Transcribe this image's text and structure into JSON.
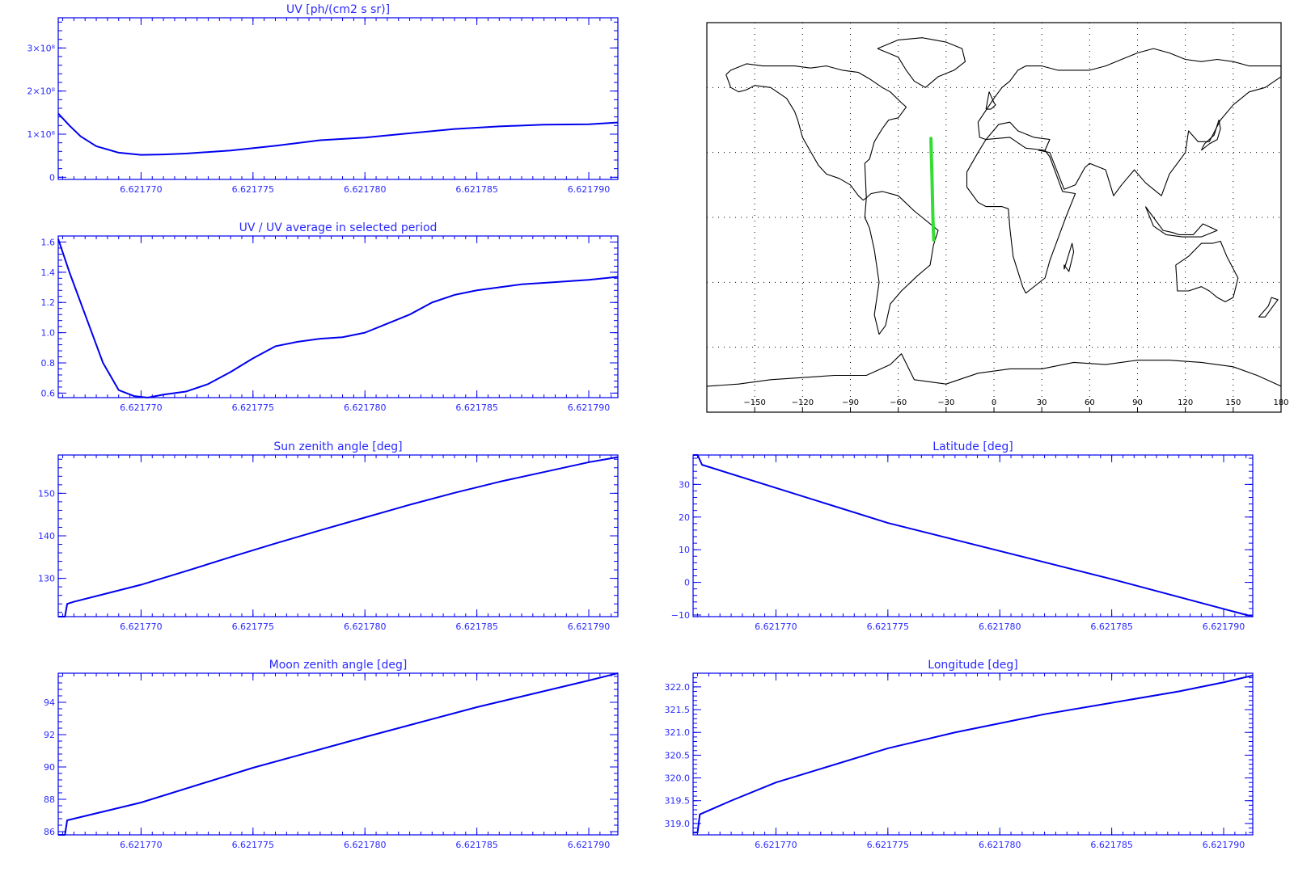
{
  "colors": {
    "plot": "#0000ee",
    "label": "#2a2aff",
    "track": "#33dd33",
    "coast": "#000000"
  },
  "chart_data": [
    {
      "id": "uv",
      "type": "line",
      "title": "UV [ph/(cm2 s sr)]",
      "xticks": [
        "6.621770",
        "6.621775",
        "6.621780",
        "6.621785",
        "6.621790"
      ],
      "xtick_values": [
        6.62177,
        6.621775,
        6.62178,
        6.621785,
        6.62179
      ],
      "xlim": [
        6.6217663,
        6.6217913
      ],
      "yticks": [
        {
          "label": "0",
          "value": 0
        },
        {
          "label": "1×10⁸",
          "value": 100000000
        },
        {
          "label": "2×10⁸",
          "value": 200000000
        },
        {
          "label": "3×10⁸",
          "value": 300000000
        }
      ],
      "ylim": [
        -5000000,
        370000000
      ],
      "series": [
        {
          "x": [
            6.6217663,
            6.6217668,
            6.6217673,
            6.621768,
            6.621769,
            6.62177,
            6.621771,
            6.621772,
            6.621774,
            6.621776,
            6.621778,
            6.62178,
            6.621782,
            6.621784,
            6.621786,
            6.621788,
            6.62179,
            6.6217913
          ],
          "y": [
            148000000,
            120000000,
            95000000,
            72000000,
            57000000,
            52000000,
            53000000,
            55000000,
            62000000,
            73000000,
            86000000,
            92000000,
            102000000,
            112000000,
            118000000,
            122000000,
            123000000,
            127000000
          ]
        }
      ]
    },
    {
      "id": "uv-ratio",
      "type": "line",
      "title": "UV / UV average in selected period",
      "xticks": [
        "6.621770",
        "6.621775",
        "6.621780",
        "6.621785",
        "6.621790"
      ],
      "xtick_values": [
        6.62177,
        6.621775,
        6.62178,
        6.621785,
        6.62179
      ],
      "xlim": [
        6.6217663,
        6.6217913
      ],
      "yticks": [
        {
          "label": "0.6",
          "value": 0.6
        },
        {
          "label": "0.8",
          "value": 0.8
        },
        {
          "label": "1.0",
          "value": 1.0
        },
        {
          "label": "1.2",
          "value": 1.2
        },
        {
          "label": "1.4",
          "value": 1.4
        },
        {
          "label": "1.6",
          "value": 1.6
        }
      ],
      "ylim": [
        0.57,
        1.64
      ],
      "series": [
        {
          "x": [
            6.6217663,
            6.6217668,
            6.6217675,
            6.6217683,
            6.621769,
            6.6217697,
            6.6217703,
            6.621771,
            6.621772,
            6.621773,
            6.621774,
            6.621775,
            6.621776,
            6.621777,
            6.621778,
            6.621779,
            6.62178,
            6.621781,
            6.621782,
            6.621783,
            6.621784,
            6.621785,
            6.621786,
            6.621787,
            6.621788,
            6.621789,
            6.62179,
            6.6217913
          ],
          "y": [
            1.62,
            1.4,
            1.12,
            0.8,
            0.62,
            0.58,
            0.57,
            0.59,
            0.61,
            0.66,
            0.74,
            0.83,
            0.91,
            0.94,
            0.96,
            0.97,
            1.0,
            1.06,
            1.12,
            1.2,
            1.25,
            1.28,
            1.3,
            1.32,
            1.33,
            1.34,
            1.35,
            1.37
          ]
        }
      ]
    },
    {
      "id": "sun-zenith",
      "type": "line",
      "title": "Sun zenith angle [deg]",
      "xticks": [
        "6.621770",
        "6.621775",
        "6.621780",
        "6.621785",
        "6.621790"
      ],
      "xtick_values": [
        6.62177,
        6.621775,
        6.62178,
        6.621785,
        6.62179
      ],
      "xlim": [
        6.6217663,
        6.6217913
      ],
      "yticks": [
        {
          "label": "130",
          "value": 130
        },
        {
          "label": "140",
          "value": 140
        },
        {
          "label": "150",
          "value": 150
        }
      ],
      "ylim": [
        121,
        159
      ],
      "series": [
        {
          "x": [
            6.6217663,
            6.6217666,
            6.6217667,
            6.621767,
            6.62177,
            6.621772,
            6.621774,
            6.621776,
            6.621778,
            6.62178,
            6.621782,
            6.621784,
            6.621786,
            6.621788,
            6.62179,
            6.6217913
          ],
          "y": [
            121,
            121,
            124,
            124.5,
            128.5,
            131.7,
            135,
            138.2,
            141.3,
            144.3,
            147.3,
            150.1,
            152.7,
            155,
            157.3,
            158.5
          ]
        }
      ]
    },
    {
      "id": "latitude",
      "type": "line",
      "title": "Latitude [deg]",
      "xticks": [
        "6.621770",
        "6.621775",
        "6.621780",
        "6.621785",
        "6.621790"
      ],
      "xtick_values": [
        6.62177,
        6.621775,
        6.62178,
        6.621785,
        6.62179
      ],
      "xlim": [
        6.6217663,
        6.6217913
      ],
      "yticks": [
        {
          "label": "−10",
          "value": -10
        },
        {
          "label": "0",
          "value": 0
        },
        {
          "label": "10",
          "value": 10
        },
        {
          "label": "20",
          "value": 20
        },
        {
          "label": "30",
          "value": 30
        }
      ],
      "ylim": [
        -10.5,
        39
      ],
      "series": [
        {
          "x": [
            6.6217663,
            6.6217665,
            6.6217667,
            6.621775,
            6.621785,
            6.6217913
          ],
          "y": [
            39,
            39,
            36,
            18.2,
            1,
            -10.5
          ]
        }
      ]
    },
    {
      "id": "moon-zenith",
      "type": "line",
      "title": "Moon zenith angle [deg]",
      "xticks": [
        "6.621770",
        "6.621775",
        "6.621780",
        "6.621785",
        "6.621790"
      ],
      "xtick_values": [
        6.62177,
        6.621775,
        6.62178,
        6.621785,
        6.62179
      ],
      "xlim": [
        6.6217663,
        6.6217913
      ],
      "yticks": [
        {
          "label": "86",
          "value": 86
        },
        {
          "label": "88",
          "value": 88
        },
        {
          "label": "90",
          "value": 90
        },
        {
          "label": "92",
          "value": 92
        },
        {
          "label": "94",
          "value": 94
        }
      ],
      "ylim": [
        85.8,
        95.8
      ],
      "series": [
        {
          "x": [
            6.6217663,
            6.6217666,
            6.6217667,
            6.621767,
            6.62177,
            6.621775,
            6.62178,
            6.621785,
            6.62179,
            6.6217913
          ],
          "y": [
            85.8,
            85.8,
            86.7,
            86.8,
            87.8,
            89.95,
            91.85,
            93.7,
            95.35,
            95.8
          ]
        }
      ]
    },
    {
      "id": "longitude",
      "type": "line",
      "title": "Longitude [deg]",
      "xticks": [
        "6.621770",
        "6.621775",
        "6.621780",
        "6.621785",
        "6.621790"
      ],
      "xtick_values": [
        6.62177,
        6.621775,
        6.62178,
        6.621785,
        6.62179
      ],
      "xlim": [
        6.6217663,
        6.6217913
      ],
      "yticks": [
        {
          "label": "319.0",
          "value": 319.0
        },
        {
          "label": "319.5",
          "value": 319.5
        },
        {
          "label": "320.0",
          "value": 320.0
        },
        {
          "label": "320.5",
          "value": 320.5
        },
        {
          "label": "321.0",
          "value": 321.0
        },
        {
          "label": "321.5",
          "value": 321.5
        },
        {
          "label": "322.0",
          "value": 322.0
        }
      ],
      "ylim": [
        318.75,
        322.3
      ],
      "series": [
        {
          "x": [
            6.6217663,
            6.6217665,
            6.6217666,
            6.621768,
            6.62177,
            6.621772,
            6.621775,
            6.621778,
            6.62178,
            6.621782,
            6.621785,
            6.621788,
            6.62179,
            6.6217913
          ],
          "y": [
            318.8,
            318.8,
            319.2,
            319.5,
            319.9,
            320.2,
            320.65,
            321.0,
            321.2,
            321.4,
            321.65,
            321.9,
            322.1,
            322.25
          ]
        }
      ]
    },
    {
      "id": "map",
      "type": "map",
      "title": "",
      "projection": "cylindrical",
      "lon_ticks": [
        {
          "label": "−150",
          "value": -150
        },
        {
          "label": "−120",
          "value": -120
        },
        {
          "label": "−90",
          "value": -90
        },
        {
          "label": "−60",
          "value": -60
        },
        {
          "label": "−30",
          "value": -30
        },
        {
          "label": "0",
          "value": 0
        },
        {
          "label": "30",
          "value": 30
        },
        {
          "label": "60",
          "value": 60
        },
        {
          "label": "90",
          "value": 90
        },
        {
          "label": "120",
          "value": 120
        },
        {
          "label": "150",
          "value": 150
        },
        {
          "label": "180",
          "value": 180
        }
      ],
      "xlim": [
        -180,
        180
      ],
      "ylim": [
        -90,
        90
      ],
      "grid": true,
      "track": {
        "lon": [
          -39.5,
          -39.3,
          -38.9,
          -38.6,
          -38.3,
          -38.0,
          -37.7
        ],
        "lat": [
          36.5,
          30,
          20,
          10,
          0,
          -6,
          -10.5
        ]
      },
      "coastlines": [
        {
          "name": "north-america",
          "lon": [
            -168,
            -165,
            -160,
            -155,
            -150,
            -140,
            -130,
            -125,
            -123,
            -120,
            -117,
            -110,
            -105,
            -97,
            -90,
            -85,
            -82,
            -80,
            -81,
            -78,
            -75,
            -70,
            -66,
            -60,
            -55,
            -58,
            -65,
            -70,
            -78,
            -85,
            -95,
            -105,
            -115,
            -125,
            -135,
            -145,
            -155,
            -165,
            -168
          ],
          "lat": [
            66,
            60,
            58,
            59,
            61,
            60,
            55,
            49,
            45,
            37,
            33,
            24,
            20,
            18,
            15,
            10,
            8,
            9,
            25,
            27,
            35,
            41,
            45,
            46,
            51,
            53,
            58,
            60,
            64,
            67,
            68,
            70,
            69,
            70,
            70,
            70,
            71,
            68,
            66
          ]
        },
        {
          "name": "greenland",
          "lon": [
            -73,
            -60,
            -45,
            -30,
            -20,
            -18,
            -25,
            -35,
            -43,
            -50,
            -55,
            -60,
            -73
          ],
          "lat": [
            78,
            82,
            83,
            81,
            78,
            72,
            68,
            65,
            60,
            63,
            68,
            74,
            78
          ]
        },
        {
          "name": "south-america",
          "lon": [
            -80,
            -77,
            -70,
            -60,
            -50,
            -45,
            -35,
            -38,
            -40,
            -48,
            -58,
            -65,
            -68,
            -72,
            -75,
            -72,
            -75,
            -78,
            -81,
            -80
          ],
          "lat": [
            9,
            11,
            12,
            10,
            3,
            0,
            -6,
            -13,
            -22,
            -27,
            -34,
            -40,
            -50,
            -54,
            -45,
            -30,
            -15,
            -5,
            0,
            9
          ]
        },
        {
          "name": "eurasia",
          "lon": [
            -10,
            -9,
            -5,
            3,
            10,
            15,
            25,
            35,
            32,
            28,
            35,
            44,
            51,
            57,
            60,
            70,
            75,
            80,
            88,
            95,
            105,
            110,
            120,
            122,
            128,
            135,
            142,
            150,
            160,
            170,
            180,
            180,
            170,
            160,
            150,
            140,
            130,
            120,
            110,
            100,
            90,
            80,
            70,
            60,
            50,
            40,
            30,
            20,
            15,
            10,
            5,
            0,
            -10
          ],
          "lat": [
            44,
            37,
            36,
            43,
            44,
            40,
            37,
            36,
            31,
            31,
            30,
            13,
            15,
            23,
            25,
            22,
            10,
            15,
            22,
            16,
            10,
            20,
            30,
            40,
            35,
            35,
            45,
            52,
            58,
            60,
            65,
            70,
            70,
            70,
            72,
            73,
            72,
            73,
            76,
            78,
            76,
            73,
            70,
            68,
            68,
            68,
            70,
            70,
            68,
            63,
            60,
            55,
            44
          ]
        },
        {
          "name": "africa",
          "lon": [
            -17,
            -10,
            -5,
            10,
            20,
            32,
            35,
            43,
            51,
            45,
            40,
            35,
            32,
            20,
            18,
            12,
            10,
            9,
            5,
            -5,
            -10,
            -17,
            -17
          ],
          "lat": [
            21,
            30,
            36,
            37,
            32,
            31,
            28,
            12,
            11,
            0,
            -10,
            -20,
            -28,
            -35,
            -32,
            -18,
            -5,
            4,
            5,
            5,
            7,
            14,
            21
          ]
        },
        {
          "name": "australia",
          "lon": [
            114,
            122,
            130,
            137,
            142,
            146,
            153,
            150,
            145,
            140,
            135,
            130,
            122,
            115,
            114
          ],
          "lat": [
            -22,
            -18,
            -12,
            -12,
            -11,
            -18,
            -28,
            -37,
            -39,
            -37,
            -34,
            -32,
            -34,
            -34,
            -22
          ]
        },
        {
          "name": "antarctica",
          "lon": [
            -180,
            -160,
            -140,
            -120,
            -100,
            -80,
            -65,
            -58,
            -50,
            -30,
            -10,
            10,
            30,
            50,
            70,
            90,
            110,
            130,
            150,
            165,
            180
          ],
          "lat": [
            -78,
            -77,
            -75,
            -74,
            -73,
            -73,
            -68,
            -63,
            -75,
            -77,
            -72,
            -70,
            -70,
            -67,
            -68,
            -66,
            -66,
            -67,
            -69,
            -73,
            -78
          ]
        },
        {
          "name": "uk",
          "lon": [
            -5,
            -3,
            0,
            1,
            -2,
            -5
          ],
          "lat": [
            50,
            58,
            53,
            52,
            50,
            50
          ]
        },
        {
          "name": "japan",
          "lon": [
            130,
            135,
            140,
            142,
            141,
            138,
            132,
            130
          ],
          "lat": [
            31,
            34,
            36,
            41,
            45,
            38,
            34,
            31
          ]
        },
        {
          "name": "madagascar",
          "lon": [
            44,
            49,
            50,
            47,
            44,
            44
          ],
          "lat": [
            -24,
            -12,
            -16,
            -25,
            -22,
            -24
          ]
        },
        {
          "name": "new-zealand",
          "lon": [
            166,
            172,
            174,
            178,
            175,
            170,
            166
          ],
          "lat": [
            -46,
            -41,
            -37,
            -38,
            -41,
            -46,
            -46
          ]
        },
        {
          "name": "indonesia",
          "lon": [
            95,
            100,
            106,
            112,
            116,
            120,
            125,
            131,
            140,
            130,
            118,
            108,
            100,
            95
          ],
          "lat": [
            5,
            0,
            -6,
            -7,
            -8,
            -8,
            -8,
            -3,
            -6,
            -9,
            -9,
            -8,
            -4,
            5
          ]
        }
      ]
    }
  ]
}
